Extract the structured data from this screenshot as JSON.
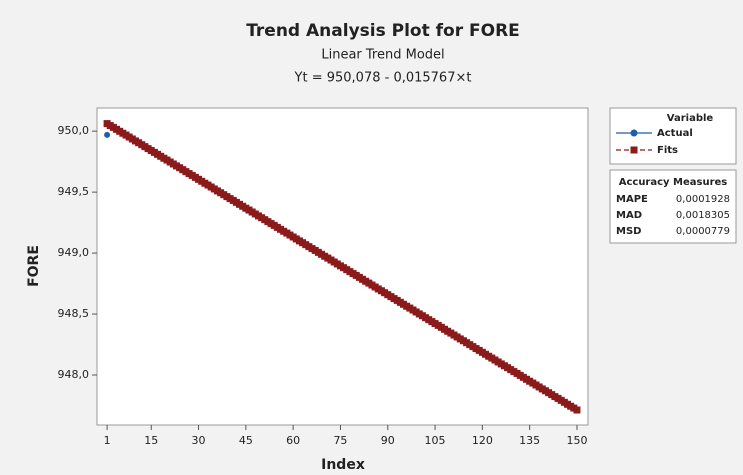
{
  "chart_data": {
    "type": "line",
    "title": "Trend Analysis Plot for FORE",
    "subtitle": "Linear Trend Model",
    "equation": "Yt = 950,078 - 0,015767×t",
    "x_label": "Index",
    "y_label": "FORE",
    "legend_title": "Variable",
    "legend_position": "right",
    "xlim": [
      -2.2,
      153.5
    ],
    "ylim": [
      947.59,
      950.19
    ],
    "xticks": [
      1,
      15,
      30,
      45,
      60,
      75,
      90,
      105,
      120,
      135,
      150
    ],
    "yticks": [
      {
        "value": 948.0,
        "label": "948,0"
      },
      {
        "value": 948.5,
        "label": "948,5"
      },
      {
        "value": 949.0,
        "label": "949,0"
      },
      {
        "value": 949.5,
        "label": "949,5"
      },
      {
        "value": 950.0,
        "label": "950,0"
      }
    ],
    "series": [
      {
        "name": "Actual",
        "color": "#1f5ea8",
        "marker": "circle",
        "x": [
          1
        ],
        "values": [
          949.97
        ]
      },
      {
        "name": "Fits",
        "color": "#8b1a1a",
        "marker": "square",
        "x": [
          1,
          2,
          3,
          4,
          5,
          6,
          7,
          8,
          9,
          10,
          11,
          12,
          13,
          14,
          15,
          16,
          17,
          18,
          19,
          20,
          21,
          22,
          23,
          24,
          25,
          26,
          27,
          28,
          29,
          30,
          31,
          32,
          33,
          34,
          35,
          36,
          37,
          38,
          39,
          40,
          41,
          42,
          43,
          44,
          45,
          46,
          47,
          48,
          49,
          50,
          51,
          52,
          53,
          54,
          55,
          56,
          57,
          58,
          59,
          60,
          61,
          62,
          63,
          64,
          65,
          66,
          67,
          68,
          69,
          70,
          71,
          72,
          73,
          74,
          75,
          76,
          77,
          78,
          79,
          80,
          81,
          82,
          83,
          84,
          85,
          86,
          87,
          88,
          89,
          90,
          91,
          92,
          93,
          94,
          95,
          96,
          97,
          98,
          99,
          100,
          101,
          102,
          103,
          104,
          105,
          106,
          107,
          108,
          109,
          110,
          111,
          112,
          113,
          114,
          115,
          116,
          117,
          118,
          119,
          120,
          121,
          122,
          123,
          124,
          125,
          126,
          127,
          128,
          129,
          130,
          131,
          132,
          133,
          134,
          135,
          136,
          137,
          138,
          139,
          140,
          141,
          142,
          143,
          144,
          145,
          146,
          147,
          148,
          149,
          150
        ],
        "values": [
          950.062,
          950.046,
          950.031,
          950.015,
          949.999,
          949.983,
          949.968,
          949.952,
          949.936,
          949.92,
          949.905,
          949.889,
          949.873,
          949.857,
          949.841,
          949.826,
          949.81,
          949.794,
          949.778,
          949.763,
          949.747,
          949.731,
          949.715,
          949.7,
          949.684,
          949.668,
          949.652,
          949.637,
          949.621,
          949.605,
          949.589,
          949.573,
          949.558,
          949.542,
          949.526,
          949.51,
          949.495,
          949.479,
          949.463,
          949.447,
          949.432,
          949.416,
          949.4,
          949.384,
          949.368,
          949.353,
          949.337,
          949.321,
          949.305,
          949.29,
          949.274,
          949.258,
          949.242,
          949.227,
          949.211,
          949.195,
          949.179,
          949.164,
          949.148,
          949.132,
          949.116,
          949.1,
          949.085,
          949.069,
          949.053,
          949.037,
          949.022,
          949.006,
          948.99,
          948.974,
          948.959,
          948.943,
          948.927,
          948.911,
          948.895,
          948.88,
          948.864,
          948.848,
          948.832,
          948.817,
          948.801,
          948.785,
          948.769,
          948.754,
          948.738,
          948.722,
          948.706,
          948.691,
          948.675,
          948.659,
          948.643,
          948.627,
          948.612,
          948.596,
          948.58,
          948.564,
          948.549,
          948.533,
          948.517,
          948.501,
          948.486,
          948.47,
          948.454,
          948.438,
          948.422,
          948.407,
          948.391,
          948.375,
          948.359,
          948.344,
          948.328,
          948.312,
          948.296,
          948.281,
          948.265,
          948.249,
          948.233,
          948.217,
          948.202,
          948.186,
          948.17,
          948.154,
          948.139,
          948.123,
          948.107,
          948.091,
          948.076,
          948.06,
          948.044,
          948.028,
          948.013,
          947.997,
          947.981,
          947.965,
          947.949,
          947.934,
          947.918,
          947.902,
          947.886,
          947.871,
          947.855,
          947.839,
          947.823,
          947.808,
          947.792,
          947.776,
          947.76,
          947.744,
          947.729,
          947.713
        ]
      }
    ],
    "accuracy": {
      "title": "Accuracy Measures",
      "rows": [
        [
          "MAPE",
          "0,0001928"
        ],
        [
          "MAD",
          "0,0018305"
        ],
        [
          "MSD",
          "0,0000779"
        ]
      ]
    }
  }
}
